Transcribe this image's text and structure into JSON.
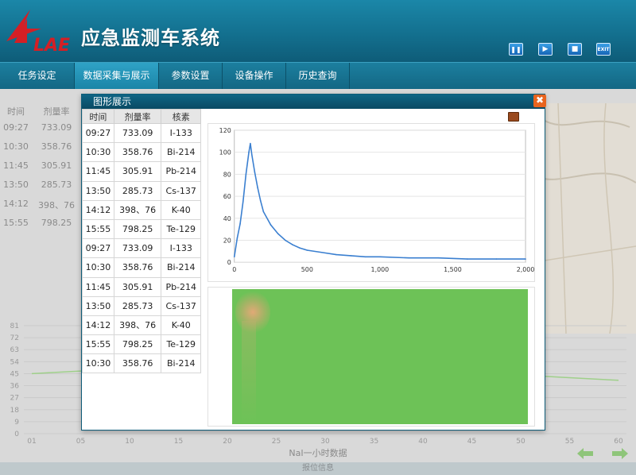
{
  "header": {
    "logo_text": "LAE",
    "title": "应急监测车系统",
    "controls": [
      {
        "name": "pause",
        "label": "❚❚"
      },
      {
        "name": "play",
        "label": "▶"
      },
      {
        "name": "stop",
        "label": "■"
      },
      {
        "name": "exit",
        "label": "EXIT"
      }
    ]
  },
  "nav": {
    "items": [
      {
        "label": "任务设定",
        "active": false
      },
      {
        "label": "数据采集与展示",
        "active": true
      },
      {
        "label": "参数设置",
        "active": false
      },
      {
        "label": "设备操作",
        "active": false
      },
      {
        "label": "历史查询",
        "active": false
      }
    ]
  },
  "background_table": {
    "headers": [
      "时间",
      "剂量率"
    ],
    "rows": [
      [
        "09:27",
        "733.09"
      ],
      [
        "10:30",
        "358.76"
      ],
      [
        "11:45",
        "305.91"
      ],
      [
        "13:50",
        "285.73"
      ],
      [
        "14:12",
        "398、76"
      ],
      [
        "15:55",
        "798.25"
      ]
    ]
  },
  "modal": {
    "title": "图形展示",
    "close_label": "✖",
    "table": {
      "headers": [
        "时间",
        "剂量率",
        "核素"
      ],
      "rows": [
        [
          "09:27",
          "733.09",
          "I-133"
        ],
        [
          "10:30",
          "358.76",
          "Bi-214"
        ],
        [
          "11:45",
          "305.91",
          "Pb-214"
        ],
        [
          "13:50",
          "285.73",
          "Cs-137"
        ],
        [
          "14:12",
          "398、76",
          "K-40"
        ],
        [
          "15:55",
          "798.25",
          "Te-129"
        ],
        [
          "09:27",
          "733.09",
          "I-133"
        ],
        [
          "10:30",
          "358.76",
          "Bi-214"
        ],
        [
          "11:45",
          "305.91",
          "Pb-214"
        ],
        [
          "13:50",
          "285.73",
          "Cs-137"
        ],
        [
          "14:12",
          "398、76",
          "K-40"
        ],
        [
          "15:55",
          "798.25",
          "Te-129"
        ],
        [
          "10:30",
          "358.76",
          "Bi-214"
        ]
      ]
    }
  },
  "chart_data": [
    {
      "type": "line",
      "title": "",
      "xlabel": "",
      "ylabel": "",
      "xlim": [
        0,
        2000
      ],
      "ylim": [
        0,
        120
      ],
      "x_ticks": [
        "0",
        "500",
        "1,000",
        "1,500",
        "2,000"
      ],
      "y_ticks": [
        "0",
        "20",
        "40",
        "60",
        "80",
        "100",
        "120"
      ],
      "grid": true,
      "series": [
        {
          "x": [
            0,
            20,
            40,
            60,
            80,
            100,
            110,
            120,
            140,
            160,
            180,
            200,
            250,
            300,
            350,
            400,
            450,
            500,
            600,
            700,
            800,
            900,
            1000,
            1200,
            1400,
            1600,
            1800,
            2000
          ],
          "values": [
            5,
            22,
            35,
            55,
            80,
            100,
            108,
            98,
            82,
            68,
            56,
            46,
            34,
            26,
            20,
            16,
            13,
            11,
            9,
            7,
            6,
            5,
            5,
            4,
            4,
            3,
            3,
            3
          ]
        }
      ]
    },
    {
      "type": "line",
      "title": "",
      "xlabel": "NaI一小时数据",
      "ylabel": "",
      "ylim": [
        0,
        81
      ],
      "y_ticks": [
        "0",
        "9",
        "18",
        "27",
        "36",
        "45",
        "54",
        "63",
        "72",
        "81"
      ],
      "categories": [
        "01",
        "05",
        "10",
        "15",
        "20",
        "25",
        "30",
        "35",
        "40",
        "45",
        "50",
        "55",
        "60"
      ],
      "series": [
        {
          "values": [
            45,
            47,
            49,
            50,
            51,
            52,
            51,
            50,
            48,
            46,
            44,
            42,
            40
          ]
        }
      ]
    }
  ],
  "heatmap": {
    "base_color": "#6dc257",
    "hotspot_color": "#e8a878"
  },
  "footer": {
    "label": "报位信息"
  },
  "colors": {
    "header": "#13708f",
    "nav_active": "#1a84a6",
    "modal_title": "#0a4a63",
    "series_line": "#3a7fd0"
  }
}
